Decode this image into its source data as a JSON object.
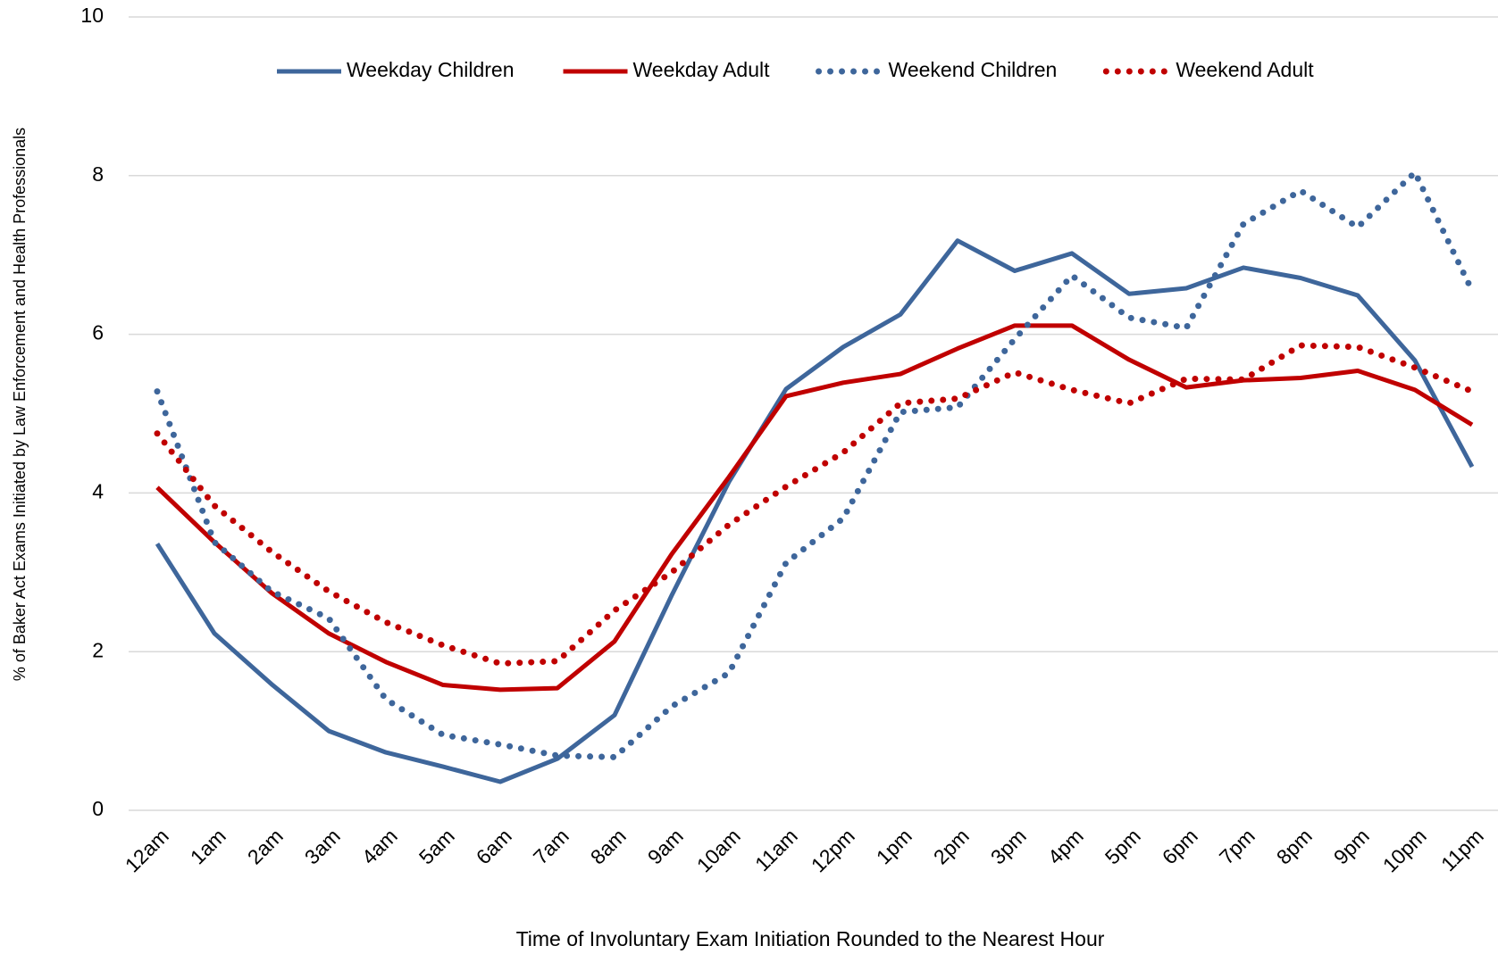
{
  "chart_data": {
    "type": "line",
    "x_label": "Time of Involuntary Exam Initiation Rounded to the Nearest Hour",
    "y_label": "% of Baker Act Exams Initiated by Law Enforcement and Health Professionals",
    "categories": [
      "12am",
      "1am",
      "2am",
      "3am",
      "4am",
      "5am",
      "6am",
      "7am",
      "8am",
      "9am",
      "10am",
      "11am",
      "12pm",
      "1pm",
      "2pm",
      "3pm",
      "4pm",
      "5pm",
      "6pm",
      "7pm",
      "8pm",
      "9pm",
      "10pm",
      "11pm"
    ],
    "ylim": [
      0,
      10
    ],
    "yticks": [
      0,
      2,
      4,
      6,
      8,
      10
    ],
    "grid": true,
    "legend": "top",
    "series": [
      {
        "name": "Weekday Children",
        "color": "#3e669b",
        "style": "solid",
        "values": [
          3.36,
          2.23,
          1.59,
          1.0,
          0.73,
          0.55,
          0.36,
          0.65,
          1.2,
          2.71,
          4.14,
          5.31,
          5.84,
          6.25,
          7.18,
          6.8,
          7.02,
          6.51,
          6.58,
          6.84,
          6.71,
          6.49,
          5.67,
          4.33
        ]
      },
      {
        "name": "Weekday Adult",
        "color": "#c00000",
        "style": "solid",
        "values": [
          4.07,
          3.38,
          2.74,
          2.23,
          1.87,
          1.58,
          1.52,
          1.54,
          2.13,
          3.23,
          4.2,
          5.22,
          5.39,
          5.5,
          5.82,
          6.11,
          6.11,
          5.68,
          5.33,
          5.42,
          5.45,
          5.54,
          5.3,
          4.86
        ]
      },
      {
        "name": "Weekend Children",
        "color": "#3e669b",
        "style": "dotted",
        "values": [
          5.28,
          3.38,
          2.76,
          2.42,
          1.4,
          0.95,
          0.83,
          0.69,
          0.67,
          1.31,
          1.73,
          3.12,
          3.68,
          5.02,
          5.08,
          5.94,
          6.74,
          6.21,
          6.08,
          7.39,
          7.81,
          7.35,
          8.04,
          6.55
        ]
      },
      {
        "name": "Weekend Adult",
        "color": "#c00000",
        "style": "dotted",
        "values": [
          4.75,
          3.84,
          3.26,
          2.76,
          2.37,
          2.08,
          1.85,
          1.88,
          2.52,
          3.0,
          3.6,
          4.08,
          4.51,
          5.13,
          5.19,
          5.52,
          5.3,
          5.13,
          5.44,
          5.43,
          5.86,
          5.84,
          5.58,
          5.28
        ]
      }
    ]
  }
}
